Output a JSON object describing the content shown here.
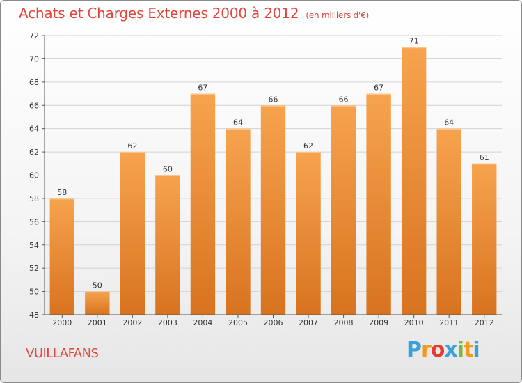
{
  "title": "Achats et Charges Externes 2000 à 2012",
  "subtitle": "(en milliers d'€)",
  "commune": "VUILLAFANS",
  "logo": {
    "letters": [
      "P",
      "r",
      "o",
      "x",
      "i",
      "t",
      "i"
    ],
    "colors": [
      "#3aa0d8",
      "#f29a1f",
      "#e63b2e",
      "#3aa0d8",
      "#7ab83b",
      "#f29a1f",
      "#3aa0d8"
    ]
  },
  "colors": {
    "bar_top": "#f7a34e",
    "bar_bottom": "#d8731f",
    "text": "#e2453b"
  },
  "chart_data": {
    "type": "bar",
    "categories": [
      "2000",
      "2001",
      "2002",
      "2003",
      "2004",
      "2005",
      "2006",
      "2007",
      "2008",
      "2009",
      "2010",
      "2011",
      "2012"
    ],
    "values": [
      58,
      50,
      62,
      60,
      67,
      64,
      66,
      62,
      66,
      67,
      71,
      64,
      61
    ],
    "ylim": [
      48,
      72
    ],
    "yticks": [
      48,
      50,
      52,
      54,
      56,
      58,
      60,
      62,
      64,
      66,
      68,
      70,
      72
    ],
    "grid": true
  }
}
